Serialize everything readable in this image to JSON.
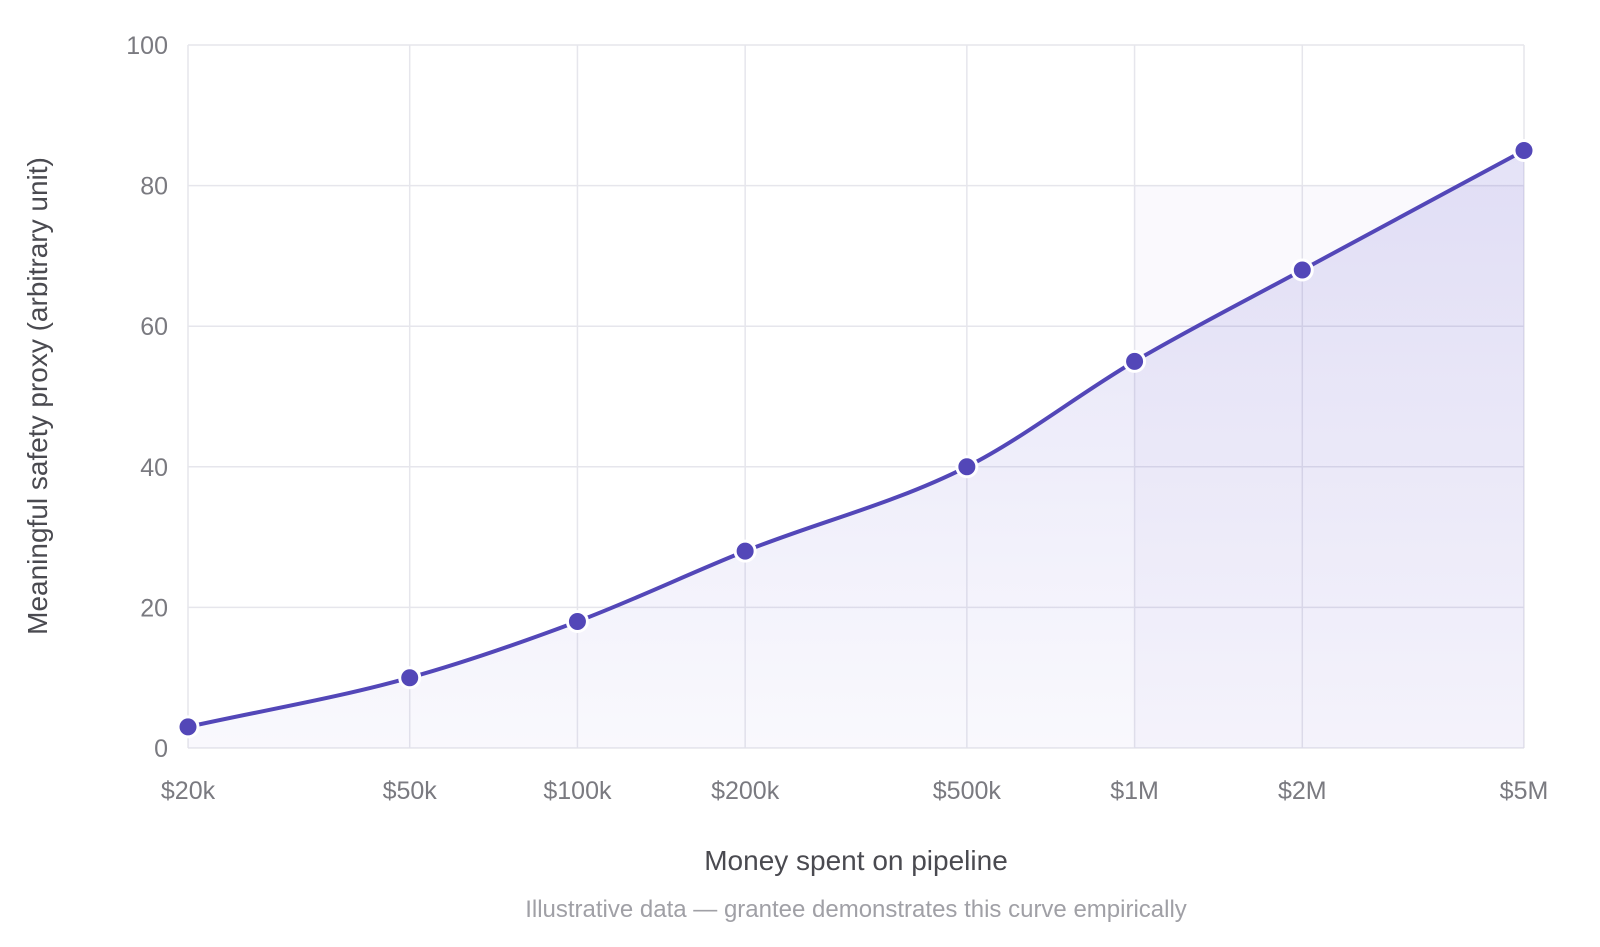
{
  "chart_data": {
    "type": "area",
    "xlabel": "Money spent on pipeline",
    "ylabel": "Meaningful safety proxy (arbitrary unit)",
    "caption": "Illustrative data — grantee demonstrates this curve empirically",
    "x_scale": "log",
    "x": [
      20000,
      50000,
      100000,
      200000,
      500000,
      1000000,
      2000000,
      5000000
    ],
    "x_tick_labels": [
      "$20k",
      "$50k",
      "$100k",
      "$200k",
      "$500k",
      "$1M",
      "$2M",
      "$5M"
    ],
    "ylim": [
      0,
      100
    ],
    "y_ticks": [
      0,
      20,
      40,
      60,
      80,
      100
    ],
    "y_tick_labels": [
      "0",
      "20",
      "40",
      "60",
      "80",
      "100"
    ],
    "grid": true,
    "highlight_region": {
      "x_from": 1000000,
      "x_to": 5000000,
      "y_from": 0,
      "y_to": 80
    },
    "series": [
      {
        "values": [
          3,
          10,
          18,
          28,
          40,
          55,
          68,
          85
        ],
        "color": "#5347b8",
        "fill_color": "#6a5fd0"
      }
    ]
  }
}
